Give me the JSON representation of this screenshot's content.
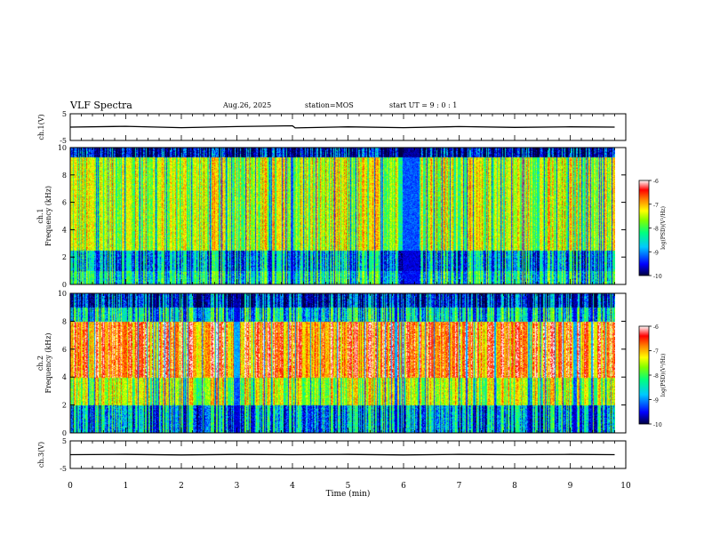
{
  "header": {
    "title": "VLF Spectra",
    "date": "Aug.26, 2025",
    "station": "station=MOS",
    "start_ut": "start UT =  9 : 0  : 1"
  },
  "chart_data": [
    {
      "id": "ch1-waveform",
      "type": "line",
      "ylabel": "ch.1(V)",
      "ylim": [
        -5,
        5
      ],
      "yticks": [
        "5",
        "-5"
      ],
      "x": [
        0,
        1,
        2,
        3,
        4,
        4.05,
        5,
        6,
        7,
        8,
        9,
        9.8
      ],
      "y": [
        0,
        0.3,
        -0.2,
        0.2,
        0.5,
        -0.3,
        0.1,
        -0.2,
        0.2,
        -0.1,
        0.1,
        0
      ],
      "xlim": [
        0,
        10
      ]
    },
    {
      "id": "ch1-spectrogram",
      "type": "heatmap",
      "ylabel": "ch.1\nFrequency (kHz)",
      "ylabel_lines": [
        "ch.1",
        "Frequency (kHz)"
      ],
      "ylim": [
        0,
        10
      ],
      "yticks": [
        "0",
        "2",
        "4",
        "6",
        "8",
        "10"
      ],
      "xlim": [
        0,
        10
      ],
      "data_end_min": 9.8,
      "colorbar": {
        "label": "log(PSD)(V²/Hz)",
        "range": [
          -10,
          -6
        ],
        "ticks": [
          "-6",
          "-7",
          "-8",
          "-9",
          "-10"
        ]
      }
    },
    {
      "id": "ch2-spectrogram",
      "type": "heatmap",
      "ylabel": "ch.2\nFrequency (kHz)",
      "ylabel_lines": [
        "ch.2",
        "Frequency (kHz)"
      ],
      "ylim": [
        0,
        10
      ],
      "yticks": [
        "0",
        "2",
        "4",
        "6",
        "8",
        "10"
      ],
      "xlim": [
        0,
        10
      ],
      "data_end_min": 9.8,
      "colorbar": {
        "label": "log(PSD)(V²/Hz)",
        "range": [
          -10,
          -6
        ],
        "ticks": [
          "-6",
          "-7",
          "-8",
          "-9",
          "-10"
        ]
      }
    },
    {
      "id": "ch3-waveform",
      "type": "line",
      "ylabel": "ch.3(V)",
      "ylim": [
        -5,
        5
      ],
      "yticks": [
        "5",
        "-5"
      ],
      "x": [
        0,
        1,
        2,
        3,
        4,
        5,
        6,
        7,
        8,
        9,
        9.8
      ],
      "y": [
        0,
        0.1,
        -0.1,
        0.1,
        0,
        0.1,
        -0.1,
        0.1,
        0,
        0.1,
        0
      ],
      "xlim": [
        0,
        10
      ]
    }
  ],
  "xaxis": {
    "label": "Time (min)",
    "ticks": [
      "0",
      "1",
      "2",
      "3",
      "4",
      "5",
      "6",
      "7",
      "8",
      "9",
      "10"
    ]
  },
  "colors": {
    "background": "#ffffff",
    "axis": "#000000",
    "colormap": [
      "#000040",
      "#0000ff",
      "#00c8ff",
      "#00ff80",
      "#80ff00",
      "#ffff00",
      "#ff8000",
      "#ff0000",
      "#ffffff"
    ]
  }
}
